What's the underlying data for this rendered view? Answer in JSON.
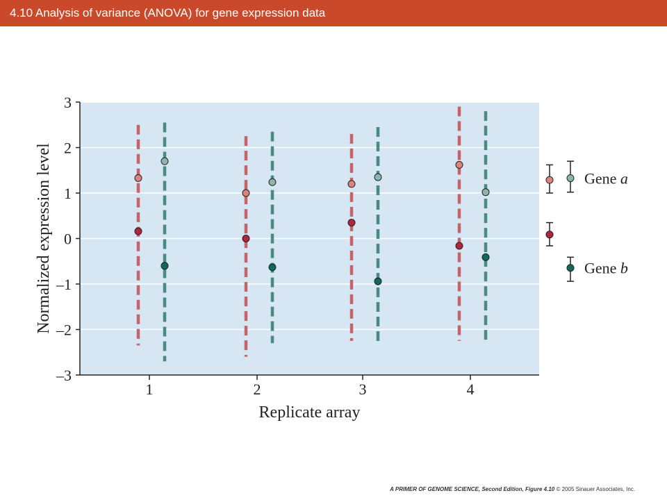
{
  "header": {
    "title": "4.10  Analysis of variance (ANOVA) for gene expression data"
  },
  "chart_data": {
    "type": "scatter",
    "xlabel": "Replicate array",
    "ylabel": "Normalized expression level",
    "ylim": [
      -3,
      3
    ],
    "y_ticks": [
      3,
      2,
      1,
      0,
      -1,
      -2,
      -3
    ],
    "y_tick_labels": [
      "3",
      "2",
      "1",
      "0",
      "–1",
      "–2",
      "–3"
    ],
    "categories": [
      "1",
      "2",
      "3",
      "4"
    ],
    "grid": true,
    "legend_placement": "right",
    "series": [
      {
        "key": "gene_a_dye1",
        "color": "#c4646a",
        "fill": "#d9847f",
        "gene": "Gene a",
        "values": [
          1.33,
          1.0,
          1.2,
          1.62
        ],
        "range_low": [
          -2.35,
          -2.6,
          -2.25,
          -2.25
        ],
        "range_high": [
          2.5,
          2.25,
          2.3,
          2.9
        ]
      },
      {
        "key": "gene_a_dye2",
        "color": "#4a8a82",
        "fill": "#8cb5ad",
        "gene": "Gene a",
        "values": [
          1.7,
          1.24,
          1.35,
          1.02
        ],
        "range_low": [
          -2.7,
          -2.3,
          -2.3,
          -2.3
        ],
        "range_high": [
          2.55,
          2.35,
          2.45,
          2.8
        ]
      },
      {
        "key": "gene_b_dye1",
        "color": "#c4646a",
        "fill": "#b3253f",
        "gene": "Gene b",
        "values": [
          0.16,
          0.0,
          0.35,
          -0.16
        ],
        "range_low": [],
        "range_high": []
      },
      {
        "key": "gene_b_dye2",
        "color": "#4a8a82",
        "fill": "#0f6a5a",
        "gene": "Gene b",
        "values": [
          -0.6,
          -0.63,
          -0.94,
          -0.41
        ],
        "range_low": [],
        "range_high": []
      }
    ],
    "legend": {
      "gene_a": {
        "label_word": "Gene",
        "label_italic": "a"
      },
      "gene_b": {
        "label_word": "Gene",
        "label_italic": "b"
      }
    }
  },
  "footer": {
    "book": "A PRIMER OF GENOME SCIENCE, Second Edition, Figure 4.10",
    "copyright": "© 2005 Sinauer Associates, Inc."
  }
}
